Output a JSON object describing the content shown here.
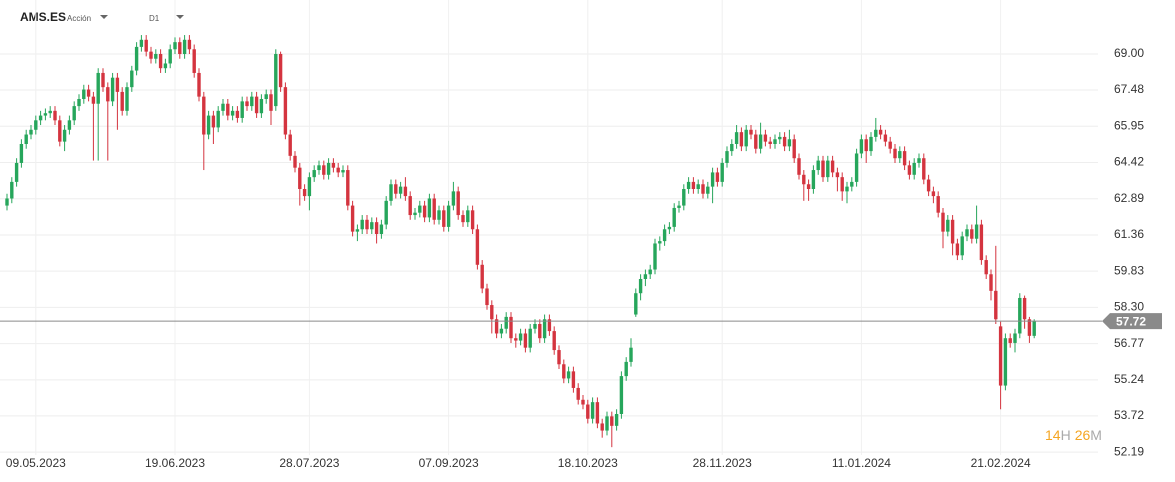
{
  "header": {
    "symbol": "AMS.ES",
    "asset_type": "Acción",
    "timeframe": "D1"
  },
  "timer": {
    "hours": 14,
    "hours_unit": "H",
    "minutes": 26,
    "minutes_unit": "M"
  },
  "chart_data": {
    "type": "candlestick",
    "up_color": "#26a65b",
    "down_color": "#d4343f",
    "grid": true,
    "ylim": [
      51.9,
      71.28
    ],
    "yticks": [
      52.19,
      53.72,
      55.24,
      56.77,
      {
        "value": 58.3,
        "label": "58.30"
      },
      59.83,
      61.36,
      62.89,
      64.42,
      65.95,
      67.48,
      {
        "value": 69,
        "label": "69.00"
      }
    ],
    "current_price": 57.72,
    "categories": [
      null,
      null,
      null,
      null,
      null,
      null,
      "09.05.2023",
      null,
      null,
      null,
      null,
      null,
      null,
      null,
      null,
      null,
      null,
      null,
      null,
      null,
      null,
      null,
      null,
      null,
      null,
      null,
      null,
      null,
      null,
      null,
      null,
      null,
      null,
      null,
      null,
      "19.06.2023",
      null,
      null,
      null,
      null,
      null,
      null,
      null,
      null,
      null,
      null,
      null,
      null,
      null,
      null,
      null,
      null,
      null,
      null,
      null,
      null,
      null,
      null,
      null,
      null,
      null,
      null,
      null,
      "28.07.2023",
      null,
      null,
      null,
      null,
      null,
      null,
      null,
      null,
      null,
      null,
      null,
      null,
      null,
      null,
      null,
      null,
      null,
      null,
      null,
      null,
      null,
      null,
      null,
      null,
      null,
      null,
      null,
      null,
      "07.09.2023",
      null,
      null,
      null,
      null,
      null,
      null,
      null,
      null,
      null,
      null,
      null,
      null,
      null,
      null,
      null,
      null,
      null,
      null,
      null,
      null,
      null,
      null,
      null,
      null,
      null,
      null,
      null,
      null,
      "18.10.2023",
      null,
      null,
      null,
      null,
      null,
      null,
      null,
      null,
      null,
      null,
      null,
      null,
      null,
      null,
      null,
      null,
      null,
      null,
      null,
      null,
      null,
      null,
      null,
      null,
      null,
      null,
      null,
      "28.11.2023",
      null,
      null,
      null,
      null,
      null,
      null,
      null,
      null,
      null,
      null,
      null,
      null,
      null,
      null,
      null,
      null,
      null,
      null,
      null,
      null,
      null,
      null,
      null,
      null,
      null,
      null,
      null,
      null,
      "11.01.2024",
      null,
      null,
      null,
      null,
      null,
      null,
      null,
      null,
      null,
      null,
      null,
      null,
      null,
      null,
      null,
      null,
      null,
      null,
      null,
      null,
      null,
      null,
      null,
      null,
      null,
      null,
      null,
      null,
      "21.02.2024",
      null,
      null,
      null,
      null,
      null,
      null,
      null
    ],
    "open": [
      62.6,
      62.9,
      63.6,
      64.4,
      65.2,
      65.6,
      65.8,
      66.2,
      66.4,
      66.5,
      66.6,
      66.2,
      65.3,
      65.8,
      66.2,
      66.8,
      67.1,
      67.5,
      67.2,
      66.9,
      68.2,
      67.6,
      67.0,
      68.0,
      67.4,
      66.6,
      67.6,
      68.3,
      69.3,
      69.6,
      69.1,
      68.8,
      69.0,
      68.4,
      68.6,
      69.2,
      69.5,
      69.0,
      69.6,
      69.2,
      68.2,
      67.2,
      65.6,
      66.4,
      65.9,
      66.6,
      66.9,
      66.4,
      66.6,
      66.3,
      67.0,
      66.8,
      67.2,
      66.5,
      67.1,
      67.3,
      66.8,
      69.0,
      67.6,
      65.6,
      64.7,
      64.2,
      63.3,
      63.0,
      63.8,
      64.1,
      64.3,
      63.9,
      64.4,
      64.2,
      64.0,
      64.1,
      62.6,
      61.5,
      61.6,
      62.0,
      61.6,
      61.9,
      61.4,
      61.8,
      62.8,
      63.5,
      63.1,
      63.4,
      63.0,
      62.2,
      62.3,
      62.6,
      62.1,
      62.9,
      62.0,
      62.4,
      61.7,
      62.6,
      63.2,
      62.2,
      61.9,
      62.4,
      61.6,
      60.1,
      59.1,
      58.4,
      57.8,
      57.2,
      57.4,
      57.9,
      57.0,
      56.9,
      57.2,
      56.6,
      57.4,
      57.6,
      57.0,
      57.8,
      57.3,
      56.5,
      55.9,
      55.3,
      55.6,
      54.9,
      54.4,
      54.2,
      53.6,
      54.3,
      53.4,
      53.1,
      53.7,
      53.3,
      53.8,
      55.4,
      56.0,
      58.0,
      58.9,
      59.5,
      59.7,
      59.9,
      61.0,
      61.1,
      61.6,
      61.7,
      62.5,
      62.6,
      63.3,
      63.6,
      63.3,
      63.5,
      63.1,
      63.4,
      64.0,
      63.6,
      64.4,
      64.9,
      65.2,
      65.7,
      65.1,
      65.8,
      65.6,
      65.0,
      65.6,
      65.3,
      65.2,
      65.4,
      65.5,
      65.1,
      65.4,
      64.6,
      63.9,
      63.5,
      63.3,
      64.1,
      64.5,
      63.8,
      64.5,
      64.0,
      63.8,
      63.2,
      63.4,
      63.6,
      64.8,
      65.4,
      64.9,
      65.5,
      65.8,
      65.6,
      65.3,
      65.0,
      64.6,
      64.9,
      64.3,
      63.9,
      64.4,
      64.6,
      63.7,
      63.2,
      63.0,
      62.3,
      61.5,
      62.0,
      61.0,
      60.5,
      61.3,
      61.6,
      61.2,
      61.8,
      60.3,
      59.7,
      59.0,
      57.5,
      55.0,
      57.0,
      56.8,
      57.2,
      58.7,
      57.8,
      57.1
    ],
    "high": [
      63.1,
      63.8,
      64.6,
      65.4,
      65.8,
      66.0,
      66.4,
      66.6,
      66.7,
      66.8,
      66.8,
      66.4,
      66.0,
      66.4,
      67.0,
      67.3,
      67.7,
      67.7,
      67.4,
      68.4,
      68.4,
      67.8,
      68.2,
      68.2,
      67.6,
      67.8,
      68.5,
      69.5,
      69.8,
      69.8,
      69.3,
      69.2,
      69.2,
      68.8,
      69.4,
      69.7,
      69.7,
      69.8,
      69.8,
      69.4,
      68.4,
      67.4,
      66.6,
      66.6,
      66.8,
      67.1,
      67.1,
      66.8,
      66.8,
      67.2,
      67.2,
      67.4,
      67.4,
      67.3,
      67.5,
      67.5,
      69.2,
      69.1,
      67.8,
      65.8,
      64.9,
      64.4,
      63.5,
      64.0,
      64.3,
      64.5,
      64.5,
      64.6,
      64.6,
      64.4,
      64.3,
      64.3,
      62.8,
      61.8,
      62.2,
      62.2,
      62.1,
      62.1,
      62.0,
      63.0,
      63.7,
      63.7,
      63.6,
      63.8,
      63.2,
      62.5,
      62.8,
      62.8,
      63.1,
      63.1,
      62.6,
      62.6,
      62.8,
      63.6,
      63.4,
      62.4,
      62.6,
      62.6,
      61.8,
      60.3,
      59.3,
      58.6,
      58.0,
      57.6,
      58.1,
      58.1,
      57.2,
      57.4,
      57.4,
      57.6,
      57.8,
      57.8,
      58.0,
      58.0,
      57.5,
      56.7,
      56.1,
      55.8,
      55.8,
      55.1,
      54.6,
      54.4,
      54.5,
      54.5,
      53.6,
      53.9,
      53.9,
      54.0,
      55.6,
      56.2,
      57.0,
      59.1,
      59.7,
      59.9,
      60.1,
      61.2,
      61.3,
      61.8,
      61.9,
      62.7,
      62.8,
      63.5,
      63.8,
      63.8,
      63.7,
      63.7,
      63.6,
      64.2,
      64.2,
      64.6,
      65.1,
      65.4,
      66.0,
      65.9,
      66.0,
      66.0,
      65.8,
      66.1,
      65.8,
      65.5,
      65.6,
      65.7,
      65.7,
      65.8,
      65.6,
      64.8,
      64.1,
      63.7,
      64.3,
      64.7,
      64.7,
      64.7,
      64.7,
      64.2,
      64.0,
      63.6,
      63.8,
      65.0,
      65.6,
      65.6,
      65.7,
      66.3,
      66.0,
      65.8,
      65.5,
      65.2,
      65.1,
      65.1,
      64.5,
      64.6,
      64.8,
      64.8,
      63.9,
      63.4,
      63.2,
      62.5,
      62.2,
      62.2,
      61.2,
      61.5,
      61.8,
      61.8,
      62.6,
      62.0,
      60.5,
      59.9,
      60.9,
      57.7,
      57.2,
      57.2,
      57.4,
      58.9,
      58.8,
      57.9,
      57.8
    ],
    "low": [
      62.4,
      62.7,
      63.4,
      64.2,
      65.0,
      65.4,
      65.6,
      66.0,
      66.2,
      66.3,
      66.0,
      65.1,
      64.9,
      65.6,
      66.0,
      66.6,
      66.9,
      67.0,
      64.5,
      64.5,
      67.4,
      64.5,
      66.8,
      65.8,
      66.4,
      66.4,
      67.4,
      68.1,
      69.1,
      68.9,
      68.6,
      68.6,
      68.2,
      68.2,
      68.4,
      69.0,
      68.8,
      68.8,
      69.0,
      68.0,
      67.0,
      64.1,
      65.4,
      65.2,
      65.7,
      66.4,
      66.2,
      66.2,
      66.1,
      66.1,
      66.6,
      66.6,
      66.3,
      66.3,
      66.9,
      66.0,
      66.6,
      67.4,
      65.4,
      64.5,
      64.0,
      62.6,
      62.8,
      62.4,
      63.6,
      63.9,
      63.7,
      63.7,
      64.0,
      63.8,
      63.8,
      62.4,
      61.3,
      61.1,
      61.4,
      61.4,
      61.4,
      61.0,
      61.2,
      61.6,
      62.6,
      62.9,
      62.9,
      62.8,
      62.0,
      62.0,
      62.1,
      61.9,
      61.9,
      61.8,
      61.8,
      61.5,
      61.5,
      62.4,
      62.0,
      61.7,
      61.7,
      61.4,
      59.9,
      58.9,
      58.2,
      57.2,
      57.0,
      57.0,
      57.2,
      56.8,
      56.6,
      56.7,
      56.4,
      56.4,
      57.2,
      56.8,
      56.8,
      57.1,
      56.3,
      55.7,
      55.1,
      55.1,
      54.7,
      54.2,
      54.0,
      53.4,
      53.4,
      53.2,
      52.8,
      52.9,
      52.4,
      53.1,
      53.6,
      55.2,
      55.8,
      57.9,
      58.6,
      59.2,
      59.5,
      59.7,
      60.7,
      60.9,
      61.4,
      61.5,
      62.3,
      62.4,
      63.1,
      63.1,
      63.1,
      62.9,
      62.9,
      62.7,
      63.4,
      63.4,
      64.2,
      64.7,
      65.0,
      64.9,
      64.9,
      65.4,
      64.8,
      64.8,
      65.1,
      65.0,
      65.0,
      65.2,
      64.9,
      64.9,
      64.4,
      63.7,
      62.8,
      62.8,
      63.1,
      63.9,
      63.6,
      63.6,
      63.8,
      63.2,
      62.8,
      62.7,
      63.2,
      63.4,
      64.6,
      64.4,
      64.7,
      65.3,
      65.4,
      65.1,
      64.8,
      64.4,
      64.4,
      64.1,
      63.7,
      63.7,
      64.2,
      63.5,
      63.0,
      62.7,
      62.1,
      60.8,
      61.3,
      60.5,
      60.3,
      60.3,
      61.1,
      61.0,
      61.0,
      60.1,
      59.5,
      58.6,
      57.6,
      54.0,
      54.8,
      56.6,
      56.4,
      57.0,
      57.4,
      56.8,
      57.0
    ],
    "close": [
      62.9,
      63.6,
      64.4,
      65.2,
      65.6,
      65.8,
      66.2,
      66.4,
      66.5,
      66.6,
      66.2,
      65.3,
      65.8,
      66.2,
      66.8,
      67.1,
      67.5,
      67.2,
      66.9,
      68.2,
      67.6,
      67.0,
      68.0,
      67.4,
      66.6,
      67.6,
      68.3,
      69.3,
      69.6,
      69.1,
      68.8,
      69.0,
      68.4,
      68.6,
      69.2,
      69.5,
      69.0,
      69.6,
      69.2,
      68.2,
      67.2,
      65.6,
      66.4,
      65.9,
      66.6,
      66.9,
      66.4,
      66.6,
      66.3,
      67.0,
      66.8,
      67.2,
      66.5,
      67.1,
      67.3,
      66.6,
      69.0,
      67.6,
      65.6,
      64.7,
      64.2,
      63.3,
      63.0,
      63.8,
      64.1,
      64.3,
      63.9,
      64.4,
      64.2,
      64.0,
      64.1,
      62.6,
      61.5,
      61.6,
      62.0,
      61.6,
      61.9,
      61.4,
      61.8,
      62.8,
      63.5,
      63.1,
      63.4,
      63.0,
      62.2,
      62.3,
      62.6,
      62.1,
      62.9,
      62.0,
      62.4,
      61.7,
      62.6,
      63.2,
      62.2,
      61.9,
      62.4,
      61.6,
      60.1,
      59.1,
      58.4,
      57.8,
      57.2,
      57.4,
      57.9,
      57.0,
      56.9,
      57.2,
      56.6,
      57.4,
      57.6,
      57.0,
      57.8,
      57.3,
      56.5,
      55.9,
      55.3,
      55.6,
      54.9,
      54.4,
      54.2,
      53.6,
      54.3,
      53.4,
      53.1,
      53.7,
      53.3,
      53.8,
      55.4,
      56.0,
      56.6,
      58.9,
      59.5,
      59.7,
      59.9,
      61.0,
      61.1,
      61.6,
      61.7,
      62.5,
      62.6,
      63.3,
      63.6,
      63.3,
      63.5,
      63.1,
      63.4,
      64.0,
      63.6,
      64.4,
      64.9,
      65.2,
      65.7,
      65.1,
      65.8,
      65.6,
      65.0,
      65.6,
      65.3,
      65.2,
      65.4,
      65.5,
      65.1,
      65.4,
      64.6,
      63.9,
      63.5,
      63.3,
      64.1,
      64.5,
      63.8,
      64.5,
      64.0,
      63.8,
      63.2,
      63.4,
      63.6,
      64.8,
      65.4,
      64.9,
      65.5,
      65.8,
      65.6,
      65.3,
      65.0,
      64.6,
      64.9,
      64.3,
      63.9,
      64.4,
      64.6,
      63.7,
      63.2,
      63.0,
      62.3,
      61.5,
      62.0,
      61.0,
      60.5,
      61.3,
      61.6,
      61.2,
      61.8,
      60.3,
      59.7,
      59.0,
      57.8,
      55.0,
      57.0,
      56.8,
      57.2,
      58.7,
      57.8,
      57.1,
      57.72
    ]
  }
}
